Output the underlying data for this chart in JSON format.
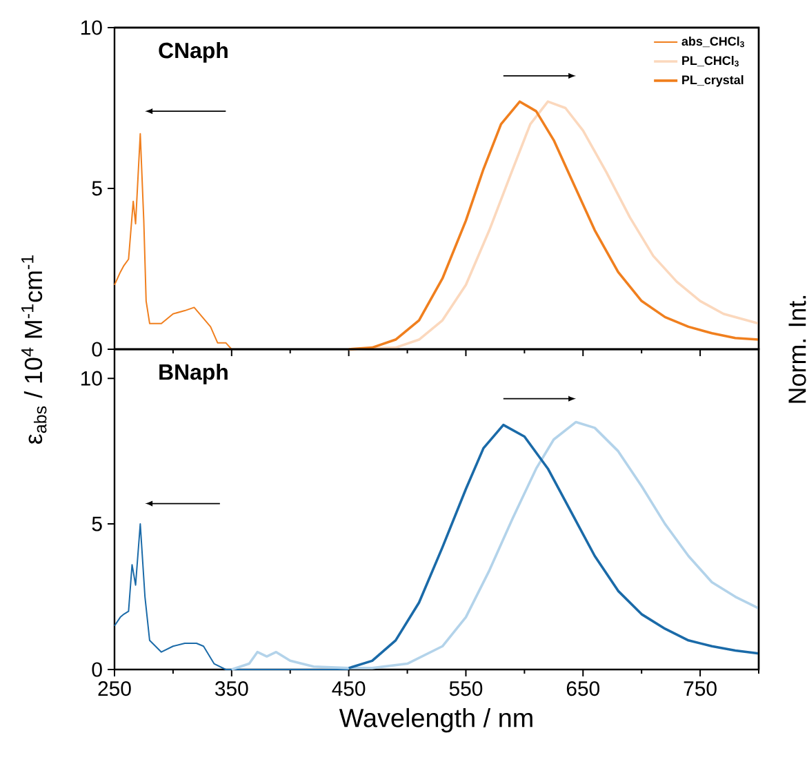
{
  "chart_data": [
    {
      "type": "line",
      "title": "CNaph",
      "ylabel": "ε$_{abs}$ / 10$^{4}$ M$^{-1}$cm$^{-1}$",
      "y2label": "Norm. Int.",
      "xlim": [
        250,
        800
      ],
      "ylim": [
        0,
        10
      ],
      "xticks": [
        250,
        350,
        450,
        550,
        650,
        750
      ],
      "yticks": [
        0,
        5,
        10
      ],
      "tick_labels": "y",
      "legend": "top right",
      "marker": "none",
      "series": [
        {
          "name": "abs_CHCl$_{3}$",
          "color": "#f07f1e",
          "x": [
            250,
            255,
            258,
            262,
            266,
            268,
            272,
            275,
            277,
            280,
            290,
            300,
            310,
            318,
            325,
            332,
            338,
            345,
            350
          ],
          "values": [
            2.0,
            2.4,
            2.6,
            2.8,
            4.6,
            3.9,
            6.7,
            4.0,
            1.5,
            0.8,
            0.8,
            1.1,
            1.2,
            1.3,
            1.0,
            0.7,
            0.2,
            0.2,
            0
          ]
        },
        {
          "name": "PL_CHCl$_{3}$",
          "color": "#fbd8bd",
          "x": [
            450,
            490,
            510,
            530,
            550,
            570,
            590,
            605,
            620,
            635,
            650,
            670,
            690,
            710,
            730,
            750,
            770,
            800
          ],
          "values": [
            0,
            0.05,
            0.3,
            0.9,
            2.0,
            3.7,
            5.6,
            7.0,
            7.7,
            7.5,
            6.8,
            5.5,
            4.1,
            2.9,
            2.1,
            1.5,
            1.1,
            0.8
          ]
        },
        {
          "name": "PL_crystal",
          "color": "#f07f1e",
          "x": [
            450,
            470,
            490,
            510,
            530,
            550,
            565,
            580,
            596,
            610,
            625,
            640,
            660,
            680,
            700,
            720,
            740,
            760,
            780,
            800
          ],
          "values": [
            0,
            0.05,
            0.3,
            0.9,
            2.2,
            4.0,
            5.6,
            7.0,
            7.7,
            7.4,
            6.5,
            5.3,
            3.7,
            2.4,
            1.5,
            1.0,
            0.7,
            0.5,
            0.35,
            0.3
          ]
        }
      ]
    },
    {
      "type": "line",
      "title": "BNaph",
      "xlabel": "Wavelength / nm",
      "xlim": [
        250,
        800
      ],
      "ylim": [
        0,
        11
      ],
      "xticks": [
        250,
        350,
        450,
        550,
        650,
        750
      ],
      "yticks": [
        0,
        5,
        10
      ],
      "marker": "none",
      "series": [
        {
          "color": "#1a6aa8",
          "x": [
            250,
            255,
            258,
            262,
            265,
            268,
            272,
            276,
            280,
            290,
            300,
            310,
            320,
            326,
            335,
            345,
            400,
            450
          ],
          "values": [
            1.5,
            1.8,
            1.9,
            2.0,
            3.6,
            2.9,
            5.0,
            2.5,
            1.0,
            0.6,
            0.8,
            0.9,
            0.9,
            0.8,
            0.2,
            0,
            0,
            0
          ]
        },
        {
          "color": "#b3d3ea",
          "x": [
            350,
            365,
            372,
            380,
            388,
            400,
            420,
            450,
            470,
            500,
            530,
            550,
            570,
            590,
            610,
            625,
            644,
            660,
            680,
            700,
            720,
            740,
            760,
            780,
            800
          ],
          "values": [
            0,
            0.2,
            0.6,
            0.45,
            0.6,
            0.3,
            0.1,
            0.05,
            0.05,
            0.2,
            0.8,
            1.8,
            3.4,
            5.2,
            6.9,
            7.9,
            8.5,
            8.3,
            7.5,
            6.3,
            5.0,
            3.9,
            3.0,
            2.5,
            2.1
          ]
        },
        {
          "color": "#1a6aa8",
          "x": [
            450,
            470,
            490,
            510,
            530,
            550,
            565,
            582,
            600,
            620,
            640,
            660,
            680,
            700,
            720,
            740,
            760,
            780,
            800
          ],
          "values": [
            0.05,
            0.3,
            1.0,
            2.3,
            4.2,
            6.2,
            7.6,
            8.4,
            8.0,
            6.9,
            5.4,
            3.9,
            2.7,
            1.9,
            1.4,
            1.0,
            0.8,
            0.65,
            0.55
          ]
        }
      ]
    }
  ]
}
